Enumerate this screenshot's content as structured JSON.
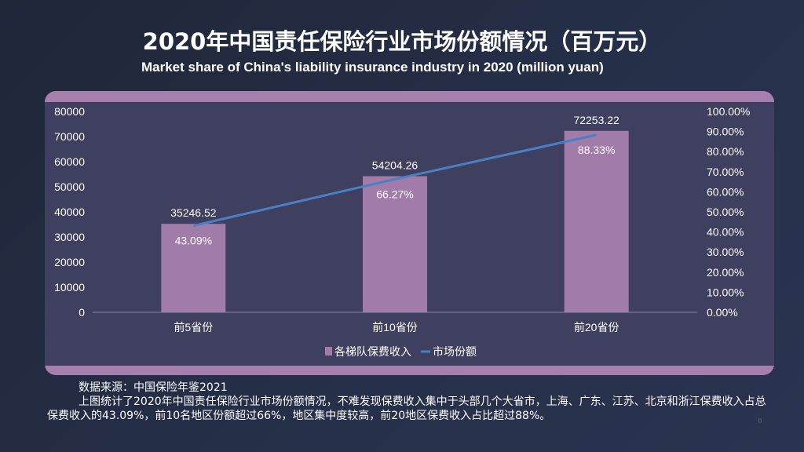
{
  "title": "2020年中国责任保险行业市场份额情况（百万元）",
  "subtitle": "Market share of China's liability insurance industry in 2020 (million yuan)",
  "chart_data": {
    "type": "bar+line",
    "categories": [
      "前5省份",
      "前10省份",
      "前20省份"
    ],
    "series": [
      {
        "name": "各梯队保费收入",
        "type": "bar",
        "axis": "left",
        "values": [
          35246.52,
          54204.26,
          72253.22
        ],
        "labels": [
          "35246.52",
          "54204.26",
          "72253.22"
        ],
        "color": "#a27ca8"
      },
      {
        "name": "市场份额",
        "type": "line",
        "axis": "right",
        "values": [
          43.09,
          66.27,
          88.33
        ],
        "labels": [
          "43.09%",
          "66.27%",
          "88.33%"
        ],
        "color": "#4a7fc4"
      }
    ],
    "y_left": {
      "range": [
        0,
        80000
      ],
      "ticks": [
        "0",
        "10000",
        "20000",
        "30000",
        "40000",
        "50000",
        "60000",
        "70000",
        "80000"
      ]
    },
    "y_right": {
      "range": [
        0,
        100
      ],
      "ticks": [
        "0.00%",
        "10.00%",
        "20.00%",
        "30.00%",
        "40.00%",
        "50.00%",
        "60.00%",
        "70.00%",
        "80.00%",
        "90.00%",
        "100.00%"
      ]
    },
    "legend": "bottom",
    "grid": false
  },
  "notes": {
    "source": "数据来源：中国保险年鉴2021",
    "body": "上图统计了2020年中国责任保险行业市场份额情况，不难发现保费收入集中于头部几个大省市，上海、广东、江苏、北京和浙江保费收入占总保费收入的43.09%，前10名地区份额超过66%，地区集中度较高，前20地区保费收入占比超过88%。"
  },
  "page_number": "8"
}
